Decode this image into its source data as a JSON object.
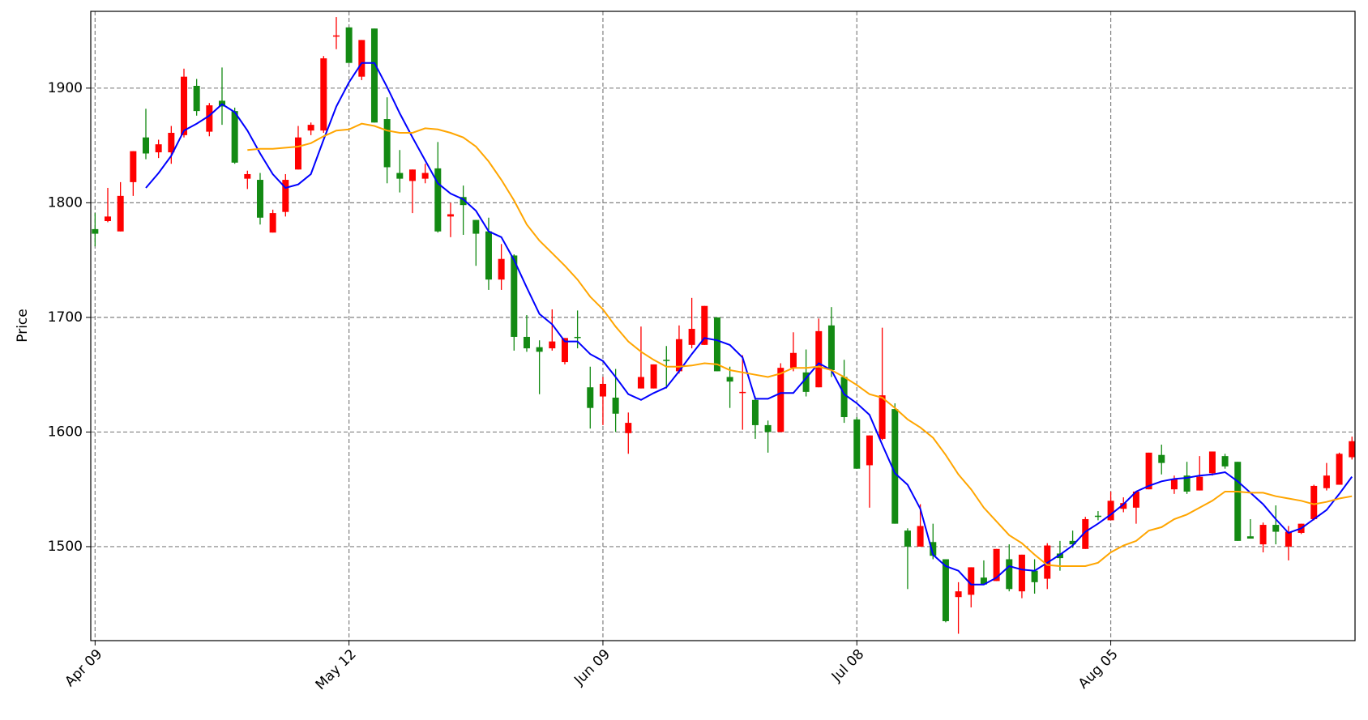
{
  "chart_data": {
    "type": "candlestick",
    "ylabel": "Price",
    "categories": [
      "Apr 09",
      null,
      null,
      null,
      null,
      null,
      null,
      null,
      null,
      null,
      null,
      null,
      null,
      null,
      null,
      null,
      null,
      null,
      null,
      null,
      "May 12",
      null,
      null,
      null,
      null,
      null,
      null,
      null,
      null,
      null,
      null,
      null,
      null,
      null,
      null,
      null,
      null,
      null,
      null,
      null,
      "Jun 09",
      null,
      null,
      null,
      null,
      null,
      null,
      null,
      null,
      null,
      null,
      null,
      null,
      null,
      null,
      null,
      null,
      null,
      null,
      null,
      "Jul 08",
      null,
      null,
      null,
      null,
      null,
      null,
      null,
      null,
      null,
      null,
      null,
      null,
      null,
      null,
      null,
      null,
      null,
      null,
      null,
      "Aug 05",
      null,
      null,
      null,
      null,
      null,
      null,
      null,
      null,
      null,
      null,
      null,
      null,
      null,
      null,
      null,
      null,
      null,
      null,
      null
    ],
    "open": [
      1777,
      1784,
      1775,
      1818,
      1857,
      1844,
      1844,
      1859,
      1902,
      1862,
      1889,
      1880,
      1821,
      1820,
      1774,
      1792,
      1829,
      1863,
      1863,
      1945,
      1953,
      1910,
      1952,
      1873,
      1826,
      1819,
      1821,
      1830,
      1788,
      1805,
      1785,
      1775,
      1733,
      1754,
      1683,
      1674,
      1673,
      1661,
      1683,
      1639,
      1631,
      1630,
      1599,
      1638,
      1638,
      1663,
      1653,
      1676,
      1676,
      1700,
      1648,
      1634,
      1628,
      1606,
      1600,
      1656,
      1652,
      1639,
      1693,
      1648,
      1611,
      1571,
      1594,
      1620,
      1514,
      1500,
      1504,
      1489,
      1456,
      1458,
      1473,
      1470,
      1489,
      1461,
      1479,
      1472,
      1494,
      1505,
      1498,
      1527,
      1523,
      1533,
      1534,
      1550,
      1580,
      1550,
      1562,
      1549,
      1564,
      1579,
      1574,
      1509,
      1502,
      1519,
      1500,
      1512,
      1524,
      1551,
      1554,
      1578
    ],
    "high": [
      1791,
      1813,
      1818,
      1845,
      1882,
      1855,
      1867,
      1917,
      1908,
      1887,
      1918,
      1883,
      1828,
      1826,
      1794,
      1825,
      1867,
      1870,
      1928,
      1962,
      1953,
      1942,
      1952,
      1892,
      1846,
      1829,
      1834,
      1853,
      1800,
      1815,
      1785,
      1787,
      1764,
      1755,
      1702,
      1680,
      1707,
      1682,
      1706,
      1657,
      1648,
      1655,
      1617,
      1692,
      1659,
      1675,
      1693,
      1717,
      1710,
      1700,
      1657,
      1667,
      1631,
      1610,
      1660,
      1687,
      1672,
      1699,
      1709,
      1663,
      1613,
      1597,
      1691,
      1625,
      1516,
      1537,
      1520,
      1489,
      1469,
      1482,
      1488,
      1498,
      1502,
      1493,
      1489,
      1503,
      1505,
      1514,
      1526,
      1531,
      1548,
      1543,
      1548,
      1582,
      1589,
      1562,
      1574,
      1579,
      1583,
      1581,
      1574,
      1524,
      1521,
      1536,
      1518,
      1520,
      1554,
      1573,
      1582,
      1596
    ],
    "low": [
      1762,
      1783,
      1775,
      1806,
      1838,
      1839,
      1834,
      1857,
      1876,
      1858,
      1868,
      1834,
      1812,
      1781,
      1774,
      1788,
      1829,
      1859,
      1861,
      1934,
      1922,
      1907,
      1870,
      1817,
      1809,
      1791,
      1817,
      1774,
      1770,
      1772,
      1745,
      1724,
      1724,
      1671,
      1670,
      1633,
      1671,
      1659,
      1673,
      1603,
      1606,
      1600,
      1581,
      1638,
      1638,
      1638,
      1651,
      1673,
      1676,
      1653,
      1621,
      1602,
      1594,
      1582,
      1600,
      1653,
      1631,
      1639,
      1648,
      1608,
      1568,
      1534,
      1593,
      1520,
      1463,
      1500,
      1489,
      1434,
      1424,
      1447,
      1467,
      1470,
      1461,
      1455,
      1459,
      1463,
      1479,
      1499,
      1498,
      1523,
      1523,
      1530,
      1520,
      1550,
      1563,
      1546,
      1546,
      1549,
      1562,
      1568,
      1505,
      1507,
      1495,
      1502,
      1488,
      1511,
      1523,
      1549,
      1554,
      1576
    ],
    "close": [
      1773,
      1788,
      1806,
      1845,
      1843,
      1851,
      1861,
      1910,
      1880,
      1885,
      1884,
      1835,
      1825,
      1787,
      1791,
      1820,
      1857,
      1868,
      1926,
      1946,
      1922,
      1942,
      1870,
      1831,
      1821,
      1829,
      1826,
      1775,
      1790,
      1798,
      1773,
      1733,
      1751,
      1683,
      1673,
      1670,
      1679,
      1682,
      1682,
      1621,
      1642,
      1616,
      1608,
      1648,
      1659,
      1662,
      1681,
      1690,
      1710,
      1653,
      1644,
      1635,
      1606,
      1600,
      1656,
      1669,
      1635,
      1688,
      1654,
      1613,
      1568,
      1597,
      1632,
      1520,
      1500,
      1518,
      1492,
      1435,
      1461,
      1482,
      1467,
      1498,
      1463,
      1493,
      1469,
      1501,
      1490,
      1502,
      1524,
      1526,
      1540,
      1538,
      1548,
      1582,
      1573,
      1559,
      1548,
      1561,
      1583,
      1570,
      1505,
      1507,
      1519,
      1513,
      1513,
      1520,
      1553,
      1562,
      1581,
      1592
    ],
    "up_color": "#ff0000",
    "down_color": "#138a13",
    "lines": [
      {
        "color": "#0000ff",
        "values": [
          null,
          null,
          null,
          null,
          1813,
          1826,
          1841,
          1863,
          1869,
          1876,
          1886,
          1879,
          1863,
          1843,
          1825,
          1813,
          1816,
          1825,
          1855,
          1884,
          1905,
          1922,
          1922,
          1901,
          1878,
          1857,
          1837,
          1817,
          1808,
          1803,
          1793,
          1775,
          1770,
          1750,
          1726,
          1703,
          1694,
          1679,
          1679,
          1668,
          1662,
          1648,
          1633,
          1628,
          1634,
          1639,
          1653,
          1668,
          1682,
          1680,
          1676,
          1665,
          1629,
          1629,
          1634,
          1634,
          1647,
          1660,
          1654,
          1633,
          1625,
          1615,
          1589,
          1564,
          1554,
          1533,
          1493,
          1483,
          1479,
          1467,
          1467,
          1473,
          1483,
          1480,
          1479,
          1486,
          1493,
          1501,
          1513,
          1520,
          1528,
          1537,
          1548,
          1553,
          1557,
          1559,
          1560,
          1562,
          1563,
          1565,
          1557,
          1547,
          1537,
          1524,
          1512,
          1516,
          1524,
          1532,
          1546,
          1561
        ]
      },
      {
        "color": "#ffa500",
        "values": [
          null,
          null,
          null,
          null,
          null,
          null,
          null,
          null,
          null,
          null,
          null,
          null,
          1846,
          1847,
          1847,
          1848,
          1849,
          1852,
          1858,
          1863,
          1864,
          1869,
          1867,
          1863,
          1861,
          1861,
          1865,
          1864,
          1861,
          1857,
          1849,
          1836,
          1820,
          1802,
          1781,
          1767,
          1756,
          1745,
          1733,
          1718,
          1707,
          1692,
          1679,
          1670,
          1663,
          1657,
          1657,
          1658,
          1660,
          1659,
          1654,
          1652,
          1650,
          1648,
          1651,
          1656,
          1656,
          1657,
          1654,
          1648,
          1641,
          1633,
          1630,
          1621,
          1611,
          1604,
          1595,
          1580,
          1563,
          1550,
          1534,
          1522,
          1510,
          1503,
          1493,
          1484,
          1483,
          1483,
          1483,
          1486,
          1495,
          1501,
          1505,
          1514,
          1517,
          1524,
          1528,
          1534,
          1540,
          1548,
          1548,
          1547,
          1547,
          1544,
          1542,
          1540,
          1537,
          1539,
          1542,
          1544
        ]
      }
    ],
    "xlim": [
      -0.34,
      99.24
    ],
    "ylim": [
      1418,
      1967
    ],
    "yticks": [
      1500,
      1600,
      1700,
      1800,
      1900
    ],
    "grid": true
  }
}
